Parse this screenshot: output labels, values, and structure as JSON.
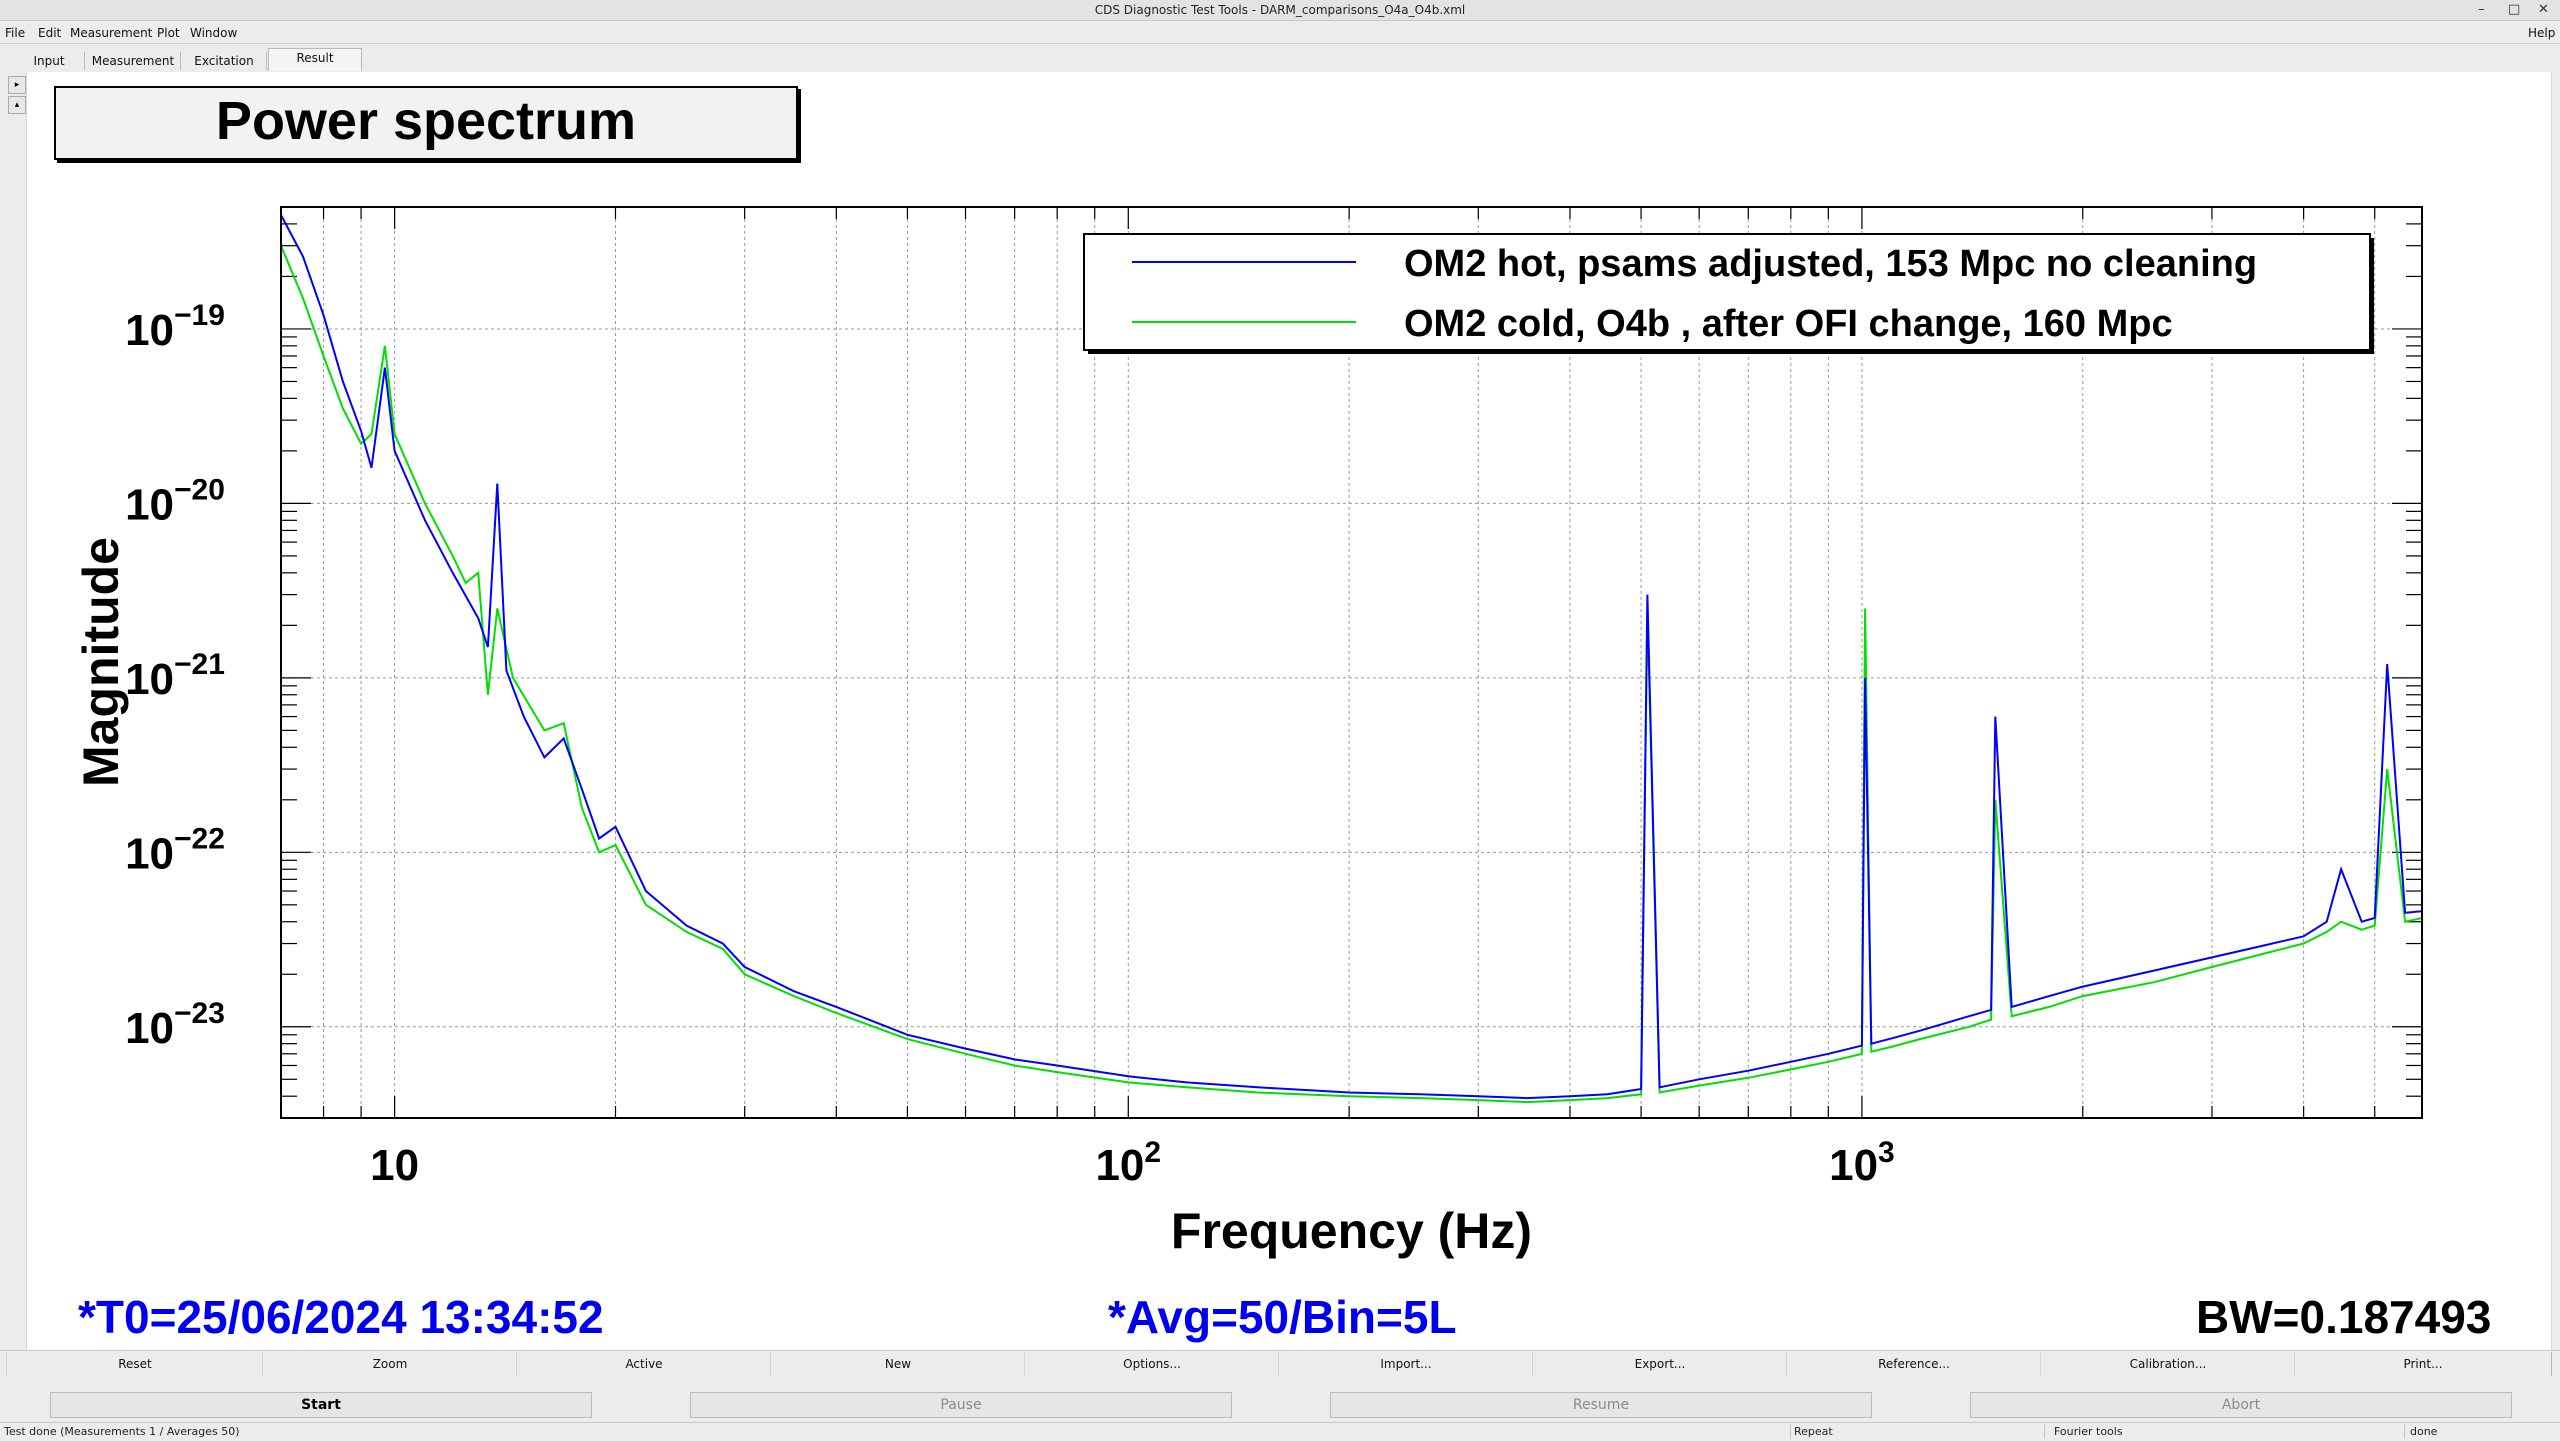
{
  "window": {
    "title": "CDS Diagnostic Test Tools - DARM_comparisons_O4a_O4b.xml",
    "controls": [
      "–",
      "□",
      "✕"
    ]
  },
  "menu": {
    "items": [
      "File",
      "Edit",
      "Measurement",
      "Plot",
      "Window"
    ],
    "help": "Help"
  },
  "tabs": [
    {
      "label": "Input",
      "active": false
    },
    {
      "label": "Measurement",
      "active": false
    },
    {
      "label": "Excitation",
      "active": false
    },
    {
      "label": "Result",
      "active": true
    }
  ],
  "plot": {
    "title": "Power spectrum"
  },
  "chart_data": {
    "type": "line",
    "xlabel": "Frequency (Hz)",
    "ylabel": "Magnitude",
    "x_scale": "log",
    "y_scale": "log",
    "xlim": [
      7,
      5800
    ],
    "ylim": [
      3e-24,
      5e-19
    ],
    "x_ticks": [
      {
        "value": 10,
        "base": "10",
        "exp": ""
      },
      {
        "value": 100,
        "base": "10",
        "exp": "2"
      },
      {
        "value": 1000,
        "base": "10",
        "exp": "3"
      }
    ],
    "y_ticks": [
      {
        "value": 1e-19,
        "base": "10",
        "exp": "−19"
      },
      {
        "value": 1e-20,
        "base": "10",
        "exp": "−20"
      },
      {
        "value": 1e-21,
        "base": "10",
        "exp": "−21"
      },
      {
        "value": 1e-22,
        "base": "10",
        "exp": "−22"
      },
      {
        "value": 1e-23,
        "base": "10",
        "exp": "−23"
      }
    ],
    "grid": true,
    "legend_position": "top-right",
    "series": [
      {
        "name": "OM2 hot, psams adjusted, 153 Mpc no cleaning",
        "color": "#0000ff",
        "x": [
          7,
          7.5,
          8,
          8.5,
          9,
          9.3,
          9.7,
          10,
          11,
          12,
          13,
          13.4,
          13.8,
          14.2,
          15,
          16,
          17,
          18,
          19,
          20,
          22,
          25,
          28,
          30,
          35,
          40,
          50,
          60,
          70,
          80,
          100,
          120,
          150,
          200,
          250,
          300,
          350,
          400,
          450,
          500,
          510,
          530,
          600,
          700,
          800,
          900,
          1000,
          1010,
          1030,
          1100,
          1200,
          1400,
          1500,
          1520,
          1600,
          1800,
          2000,
          2500,
          3000,
          3500,
          4000,
          4300,
          4500,
          4800,
          5000,
          5200,
          5500,
          5800
        ],
        "y": [
          4.5e-19,
          2.6e-19,
          1.2e-19,
          5e-20,
          2.6e-20,
          1.6e-20,
          6e-20,
          2e-20,
          8e-21,
          4e-21,
          2.2e-21,
          1.5e-21,
          1.3e-20,
          1.1e-21,
          6e-22,
          3.5e-22,
          4.5e-22,
          2.3e-22,
          1.2e-22,
          1.4e-22,
          6e-23,
          3.8e-23,
          3e-23,
          2.2e-23,
          1.6e-23,
          1.3e-23,
          9e-24,
          7.5e-24,
          6.5e-24,
          6e-24,
          5.2e-24,
          4.8e-24,
          4.5e-24,
          4.2e-24,
          4.1e-24,
          4e-24,
          3.9e-24,
          4e-24,
          4.1e-24,
          4.4e-24,
          3e-21,
          4.5e-24,
          5e-24,
          5.6e-24,
          6.3e-24,
          7e-24,
          7.8e-24,
          1e-21,
          8e-24,
          8.6e-24,
          9.5e-24,
          1.15e-23,
          1.25e-23,
          6e-22,
          1.3e-23,
          1.5e-23,
          1.7e-23,
          2.1e-23,
          2.5e-23,
          2.9e-23,
          3.3e-23,
          4e-23,
          8e-23,
          4e-23,
          4.2e-23,
          1.2e-21,
          4.5e-23,
          4.6e-23
        ]
      },
      {
        "name": "OM2 cold, O4b , after OFI change, 160 Mpc",
        "color": "#00e000",
        "x": [
          7,
          7.5,
          8,
          8.5,
          9,
          9.3,
          9.7,
          10,
          11,
          12,
          12.5,
          13,
          13.4,
          13.8,
          14.5,
          16,
          17,
          18,
          19,
          20,
          22,
          25,
          28,
          30,
          35,
          40,
          50,
          60,
          70,
          80,
          100,
          120,
          150,
          200,
          250,
          300,
          350,
          400,
          450,
          500,
          510,
          530,
          600,
          700,
          800,
          900,
          1000,
          1010,
          1030,
          1100,
          1200,
          1400,
          1500,
          1520,
          1600,
          1800,
          2000,
          2500,
          3000,
          3500,
          4000,
          4300,
          4500,
          4800,
          5000,
          5200,
          5500,
          5800
        ],
        "y": [
          3e-19,
          1.5e-19,
          7e-20,
          3.5e-20,
          2.2e-20,
          2.5e-20,
          8e-20,
          2.5e-20,
          1e-20,
          5e-21,
          3.5e-21,
          4e-21,
          8e-22,
          2.5e-21,
          1e-21,
          5e-22,
          5.5e-22,
          1.8e-22,
          1e-22,
          1.1e-22,
          5e-23,
          3.5e-23,
          2.8e-23,
          2e-23,
          1.5e-23,
          1.2e-23,
          8.5e-24,
          7e-24,
          6e-24,
          5.5e-24,
          4.8e-24,
          4.5e-24,
          4.2e-24,
          4e-24,
          3.9e-24,
          3.8e-24,
          3.7e-24,
          3.8e-24,
          3.9e-24,
          4.1e-24,
          2.5e-21,
          4.2e-24,
          4.6e-24,
          5.1e-24,
          5.7e-24,
          6.3e-24,
          7e-24,
          2.5e-21,
          7.2e-24,
          7.7e-24,
          8.5e-24,
          1e-23,
          1.1e-23,
          2e-22,
          1.15e-23,
          1.3e-23,
          1.5e-23,
          1.8e-23,
          2.2e-23,
          2.6e-23,
          3e-23,
          3.5e-23,
          4e-23,
          3.6e-23,
          3.8e-23,
          3e-22,
          4e-23,
          4.2e-23
        ]
      }
    ]
  },
  "footer": {
    "t0": "*T0=25/06/2024 13:34:52",
    "avg": "*Avg=50/Bin=5L",
    "bw": "BW=0.187493",
    "t0_color": "#0000ee",
    "bw_color": "#000000"
  },
  "buttons_row1": [
    "Reset",
    "Zoom",
    "Active",
    "New",
    "Options...",
    "Import...",
    "Export...",
    "Reference...",
    "Calibration...",
    "Print..."
  ],
  "buttons_row2": [
    {
      "label": "Start",
      "enabled": true
    },
    {
      "label": "Pause",
      "enabled": false
    },
    {
      "label": "Resume",
      "enabled": false
    },
    {
      "label": "Abort",
      "enabled": false
    }
  ],
  "status": {
    "message": "Test done (Measurements 1 / Averages 50)",
    "repeat": "Repeat",
    "tools": "Fourier tools",
    "state": "done"
  }
}
